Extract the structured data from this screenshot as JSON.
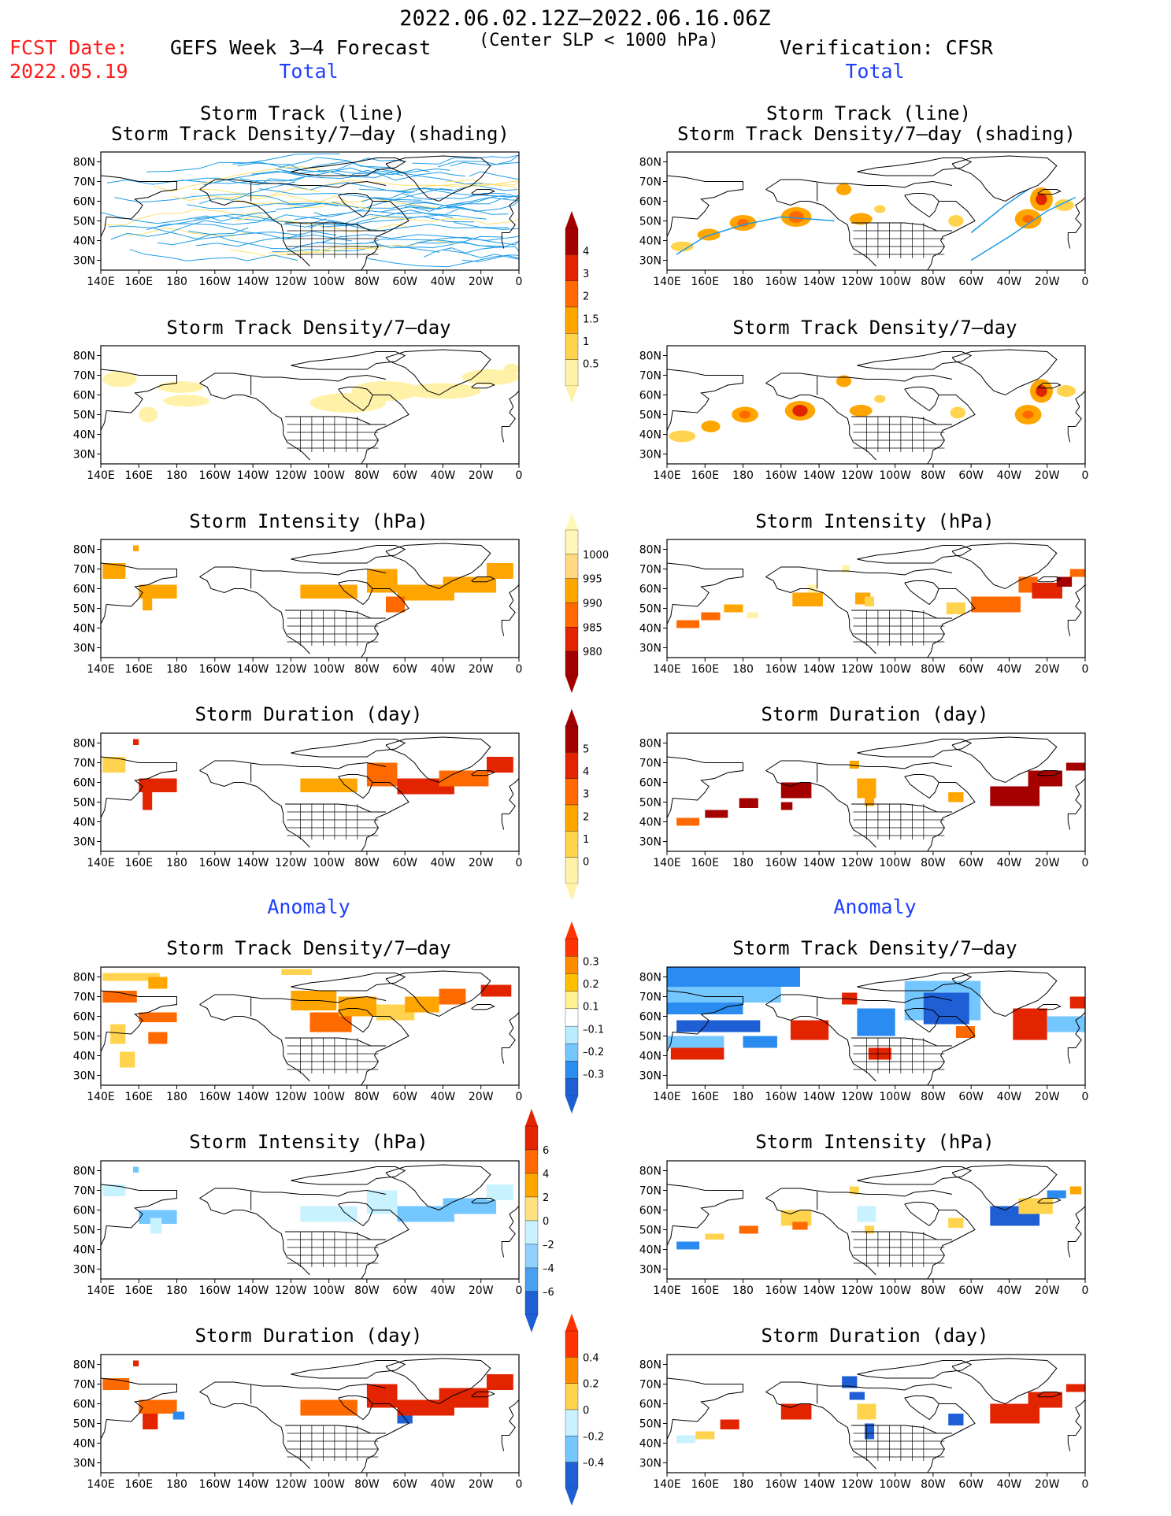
{
  "header": {
    "period": "2022.06.02.12Z–2022.06.16.06Z",
    "fcst_label": "FCST Date:",
    "fcst_date": "2022.05.19",
    "left_title": "GEFS Week 3–4 Forecast",
    "subtitle": "(Center SLP < 1000 hPa)",
    "right_title": "Verification: CFSR"
  },
  "sections": {
    "total_left": "Total",
    "total_right": "Total",
    "anomaly_left": "Anomaly",
    "anomaly_right": "Anomaly"
  },
  "panel_titles": {
    "track_line": "Storm Track (line)",
    "track_shading": "Storm Track Density/7–day (shading)",
    "density": "Storm Track Density/7–day",
    "intensity": "Storm Intensity (hPa)",
    "duration": "Storm Duration (day)"
  },
  "axes": {
    "x_ticks": [
      "140E",
      "160E",
      "180",
      "160W",
      "140W",
      "120W",
      "100W",
      "80W",
      "60W",
      "40W",
      "20W",
      "0"
    ],
    "y_ticks": [
      "80N",
      "70N",
      "60N",
      "50N",
      "40N",
      "30N"
    ]
  },
  "colorbars": [
    {
      "id": "density_total",
      "labels": [
        "4",
        "3",
        "2",
        "1.5",
        "1",
        "0.5"
      ],
      "colors": [
        "#a50000",
        "#e32400",
        "#ff6a00",
        "#ffa500",
        "#ffd34d",
        "#fff2a8"
      ]
    },
    {
      "id": "intensity_total",
      "labels": [
        "1000",
        "995",
        "990",
        "985",
        "980"
      ],
      "colors": [
        "#fff7b8",
        "#ffd880",
        "#ffa500",
        "#ff6a00",
        "#e32400",
        "#a50000"
      ]
    },
    {
      "id": "duration_total",
      "labels": [
        "5",
        "4",
        "3",
        "2",
        "1",
        "0"
      ],
      "colors": [
        "#a50000",
        "#e32400",
        "#ff6a00",
        "#ffa500",
        "#ffd34d",
        "#fff2a8"
      ]
    },
    {
      "id": "density_anom",
      "labels": [
        "0.3",
        "0.2",
        "0.1",
        "–0.1",
        "–0.2",
        "–0.3"
      ],
      "colors": [
        "#ff3300",
        "#ff8c00",
        "#ffc000",
        "#fff090",
        "#ffffff",
        "#b8ecff",
        "#74c6ff",
        "#2a8cf0",
        "#1f5fd6"
      ]
    },
    {
      "id": "intensity_anom",
      "labels": [
        "6",
        "4",
        "2",
        "0",
        "–2",
        "–4",
        "–6"
      ],
      "colors": [
        "#e32400",
        "#ff6a00",
        "#ffa500",
        "#ffe080",
        "#c8f2ff",
        "#8fd0ff",
        "#4aa0f0",
        "#1f5fd6"
      ]
    },
    {
      "id": "duration_anom",
      "labels": [
        "0.4",
        "0.2",
        "0",
        "–0.2",
        "–0.4"
      ],
      "colors": [
        "#ff3300",
        "#ff8c00",
        "#ffd24d",
        "#c8f2ff",
        "#74c6ff",
        "#1f5fd6"
      ]
    }
  ],
  "chart_data": [
    {
      "type": "heatmap",
      "panel": "GEFS Storm Track (line) / Storm Track Density/7-day (shading)",
      "region": "140E–0, 25N–85N"
    },
    {
      "type": "heatmap",
      "panel": "CFSR Storm Track (line) / Storm Track Density/7-day (shading)",
      "region": "140E–0, 25N–85N"
    },
    {
      "type": "heatmap",
      "panel": "GEFS Storm Track Density/7-day",
      "units": "per 7 days"
    },
    {
      "type": "heatmap",
      "panel": "CFSR Storm Track Density/7-day",
      "units": "per 7 days"
    },
    {
      "type": "heatmap",
      "panel": "GEFS Storm Intensity (hPa)",
      "range": [
        980,
        1000
      ]
    },
    {
      "type": "heatmap",
      "panel": "CFSR Storm Intensity (hPa)",
      "range": [
        980,
        1000
      ]
    },
    {
      "type": "heatmap",
      "panel": "GEFS Storm Duration (day)",
      "range": [
        0,
        5
      ]
    },
    {
      "type": "heatmap",
      "panel": "CFSR Storm Duration (day)",
      "range": [
        0,
        5
      ]
    },
    {
      "type": "heatmap",
      "panel": "GEFS Anomaly Storm Track Density/7-day",
      "range": [
        -0.3,
        0.3
      ]
    },
    {
      "type": "heatmap",
      "panel": "CFSR Anomaly Storm Track Density/7-day",
      "range": [
        -0.3,
        0.3
      ]
    },
    {
      "type": "heatmap",
      "panel": "GEFS Anomaly Storm Intensity (hPa)",
      "range": [
        -6,
        6
      ]
    },
    {
      "type": "heatmap",
      "panel": "CFSR Anomaly Storm Intensity (hPa)",
      "range": [
        -6,
        6
      ]
    },
    {
      "type": "heatmap",
      "panel": "GEFS Anomaly Storm Duration (day)",
      "range": [
        -0.4,
        0.4
      ]
    },
    {
      "type": "heatmap",
      "panel": "CFSR Anomaly Storm Duration (day)",
      "range": [
        -0.4,
        0.4
      ]
    }
  ]
}
